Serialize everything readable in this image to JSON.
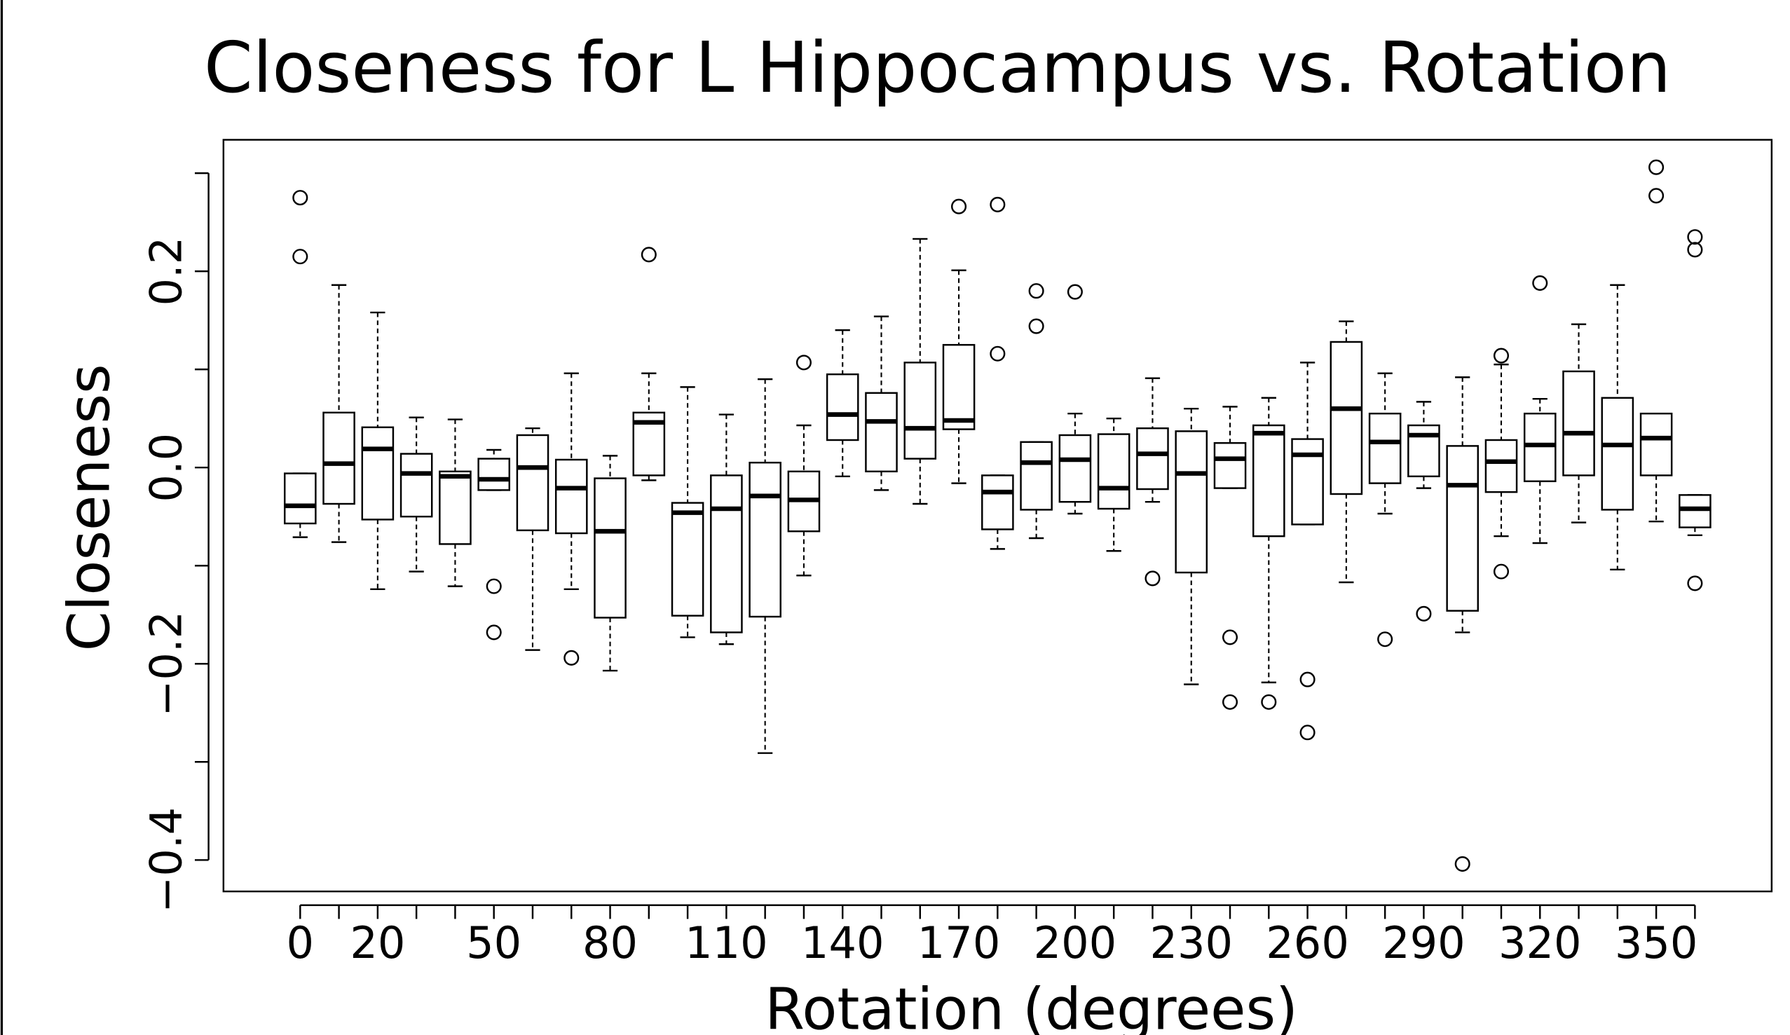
{
  "chart_data": {
    "type": "boxplot",
    "title": "Closeness for L Hippocampus vs. Rotation",
    "x_label": "Rotation (degrees)",
    "y_label": "Closeness",
    "categories": [
      "0",
      null,
      "20",
      null,
      null,
      "50",
      null,
      null,
      "80",
      null,
      null,
      "110",
      null,
      null,
      "140",
      null,
      null,
      "170",
      null,
      null,
      "200",
      null,
      null,
      "230",
      null,
      null,
      "260",
      null,
      null,
      "290",
      null,
      null,
      "320",
      null,
      null,
      "350",
      null
    ],
    "boxes": [
      {
        "lo": -0.071,
        "q1": -0.057,
        "med": -0.039,
        "q3": -0.006,
        "hi": -0.006,
        "outliers": [
          0.275,
          0.215
        ]
      },
      {
        "lo": -0.076,
        "q1": -0.037,
        "med": 0.004,
        "q3": 0.056,
        "hi": 0.186,
        "outliers": []
      },
      {
        "lo": -0.124,
        "q1": -0.053,
        "med": 0.019,
        "q3": 0.041,
        "hi": 0.158,
        "outliers": []
      },
      {
        "lo": -0.106,
        "q1": -0.05,
        "med": -0.006,
        "q3": 0.014,
        "hi": 0.051,
        "outliers": []
      },
      {
        "lo": -0.121,
        "q1": -0.078,
        "med": -0.009,
        "q3": -0.004,
        "hi": 0.049,
        "outliers": []
      },
      {
        "lo": -0.023,
        "q1": -0.023,
        "med": -0.012,
        "q3": 0.009,
        "hi": 0.018,
        "outliers": [
          -0.121,
          -0.168
        ]
      },
      {
        "lo": -0.186,
        "q1": -0.064,
        "med": 0.0,
        "q3": 0.033,
        "hi": 0.04,
        "outliers": []
      },
      {
        "lo": -0.124,
        "q1": -0.067,
        "med": -0.021,
        "q3": 0.008,
        "hi": 0.096,
        "outliers": [
          -0.194
        ]
      },
      {
        "lo": -0.207,
        "q1": -0.153,
        "med": -0.065,
        "q3": -0.011,
        "hi": 0.012,
        "outliers": []
      },
      {
        "lo": -0.013,
        "q1": -0.008,
        "med": 0.046,
        "q3": 0.056,
        "hi": 0.096,
        "outliers": [
          0.217
        ]
      },
      {
        "lo": -0.173,
        "q1": -0.151,
        "med": -0.046,
        "q3": -0.036,
        "hi": 0.082,
        "outliers": []
      },
      {
        "lo": -0.18,
        "q1": -0.168,
        "med": -0.042,
        "q3": -0.008,
        "hi": 0.054,
        "outliers": []
      },
      {
        "lo": -0.291,
        "q1": -0.152,
        "med": -0.029,
        "q3": 0.005,
        "hi": 0.09,
        "outliers": []
      },
      {
        "lo": -0.11,
        "q1": -0.065,
        "med": -0.033,
        "q3": -0.004,
        "hi": 0.043,
        "outliers": [
          0.107
        ]
      },
      {
        "lo": -0.009,
        "q1": 0.028,
        "med": 0.054,
        "q3": 0.095,
        "hi": 0.14,
        "outliers": []
      },
      {
        "lo": -0.023,
        "q1": -0.004,
        "med": 0.047,
        "q3": 0.076,
        "hi": 0.154,
        "outliers": []
      },
      {
        "lo": -0.037,
        "q1": 0.009,
        "med": 0.04,
        "q3": 0.107,
        "hi": 0.233,
        "outliers": []
      },
      {
        "lo": -0.016,
        "q1": 0.039,
        "med": 0.048,
        "q3": 0.125,
        "hi": 0.201,
        "outliers": [
          0.266
        ]
      },
      {
        "lo": -0.083,
        "q1": -0.063,
        "med": -0.025,
        "q3": -0.008,
        "hi": -0.008,
        "outliers": [
          0.268,
          0.116
        ]
      },
      {
        "lo": -0.072,
        "q1": -0.043,
        "med": 0.005,
        "q3": 0.026,
        "hi": 0.026,
        "outliers": [
          0.18,
          0.144
        ]
      },
      {
        "lo": -0.047,
        "q1": -0.035,
        "med": 0.008,
        "q3": 0.033,
        "hi": 0.055,
        "outliers": [
          0.179
        ]
      },
      {
        "lo": -0.085,
        "q1": -0.042,
        "med": -0.021,
        "q3": 0.034,
        "hi": 0.05,
        "outliers": []
      },
      {
        "lo": -0.035,
        "q1": -0.022,
        "med": 0.014,
        "q3": 0.04,
        "hi": 0.091,
        "outliers": [
          -0.113
        ]
      },
      {
        "lo": -0.221,
        "q1": -0.107,
        "med": -0.006,
        "q3": 0.037,
        "hi": 0.06,
        "outliers": []
      },
      {
        "lo": -0.021,
        "q1": -0.021,
        "med": 0.009,
        "q3": 0.025,
        "hi": 0.062,
        "outliers": [
          -0.173,
          -0.239
        ]
      },
      {
        "lo": -0.219,
        "q1": -0.07,
        "med": 0.035,
        "q3": 0.043,
        "hi": 0.071,
        "outliers": [
          -0.239
        ]
      },
      {
        "lo": -0.058,
        "q1": -0.058,
        "med": 0.013,
        "q3": 0.029,
        "hi": 0.107,
        "outliers": [
          -0.216,
          -0.27
        ]
      },
      {
        "lo": -0.117,
        "q1": -0.027,
        "med": 0.06,
        "q3": 0.128,
        "hi": 0.149,
        "outliers": []
      },
      {
        "lo": -0.047,
        "q1": -0.016,
        "med": 0.026,
        "q3": 0.055,
        "hi": 0.096,
        "outliers": [
          -0.175
        ]
      },
      {
        "lo": -0.021,
        "q1": -0.009,
        "med": 0.033,
        "q3": 0.043,
        "hi": 0.067,
        "outliers": [
          -0.149
        ]
      },
      {
        "lo": -0.168,
        "q1": -0.146,
        "med": -0.018,
        "q3": 0.022,
        "hi": 0.092,
        "outliers": [
          -0.404
        ]
      },
      {
        "lo": -0.07,
        "q1": -0.025,
        "med": 0.006,
        "q3": 0.028,
        "hi": 0.105,
        "outliers": [
          0.114,
          -0.106
        ]
      },
      {
        "lo": -0.077,
        "q1": -0.014,
        "med": 0.023,
        "q3": 0.055,
        "hi": 0.07,
        "outliers": [
          0.188
        ]
      },
      {
        "lo": -0.056,
        "q1": -0.008,
        "med": 0.035,
        "q3": 0.098,
        "hi": 0.146,
        "outliers": []
      },
      {
        "lo": -0.104,
        "q1": -0.043,
        "med": 0.023,
        "q3": 0.071,
        "hi": 0.186,
        "outliers": []
      },
      {
        "lo": -0.055,
        "q1": -0.008,
        "med": 0.03,
        "q3": 0.055,
        "hi": 0.055,
        "outliers": [
          0.306,
          0.277
        ]
      },
      {
        "lo": -0.069,
        "q1": -0.061,
        "med": -0.042,
        "q3": -0.028,
        "hi": -0.028,
        "outliers": [
          0.235,
          0.222,
          -0.118
        ]
      }
    ],
    "ylim": [
      -0.432,
      0.334
    ],
    "yticks": [
      {
        "value": -0.4,
        "label": "−0.4"
      },
      {
        "value": -0.2,
        "label": "−0.2"
      },
      {
        "value": 0.0,
        "label": "0.0"
      },
      0.2
    ],
    "yminor_ticks": [
      -0.3,
      -0.1,
      0.1,
      0.3
    ],
    "grid": false,
    "color": "#000000"
  }
}
